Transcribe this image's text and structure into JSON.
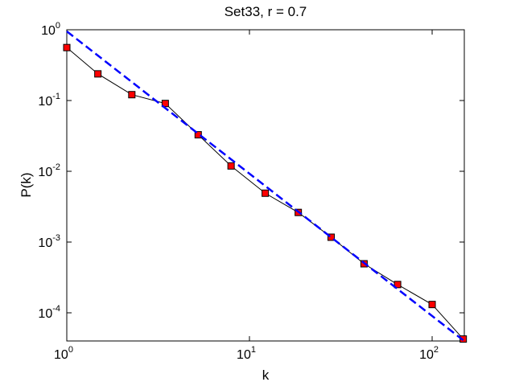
{
  "chart_data": {
    "type": "line",
    "title": "Set33, r = 0.7",
    "xlabel": "k",
    "ylabel": "P(k)",
    "xscale": "log",
    "yscale": "log",
    "xlim": [
      1,
      150
    ],
    "ylim": [
      4e-05,
      1
    ],
    "xticks": [
      {
        "value": 1,
        "label": "10",
        "exponent": "0"
      },
      {
        "value": 10,
        "label": "10",
        "exponent": "1"
      },
      {
        "value": 100,
        "label": "10",
        "exponent": "2"
      }
    ],
    "yticks": [
      {
        "value": 0.0001,
        "label": "10",
        "exponent": "-4"
      },
      {
        "value": 0.001,
        "label": "10",
        "exponent": "-3"
      },
      {
        "value": 0.01,
        "label": "10",
        "exponent": "-2"
      },
      {
        "value": 0.1,
        "label": "10",
        "exponent": "-1"
      },
      {
        "value": 1,
        "label": "10",
        "exponent": "0"
      }
    ],
    "series": [
      {
        "color": "#000000",
        "marker_color": "#ff0000",
        "dash": false,
        "x": [
          1,
          1.48,
          2.27,
          3.46,
          5.24,
          7.93,
          12.2,
          18.5,
          28,
          42.4,
          64.7,
          100,
          148
        ],
        "values": [
          0.56,
          0.238,
          0.121,
          0.0908,
          0.0328,
          0.0119,
          0.0049,
          0.00262,
          0.00117,
          0.000493,
          0.000251,
          0.000131,
          4.26e-05
        ]
      },
      {
        "color": "#0000ff",
        "dash": true,
        "x": [
          1,
          148
        ],
        "values": [
          0.95,
          4.1e-05
        ]
      }
    ]
  }
}
